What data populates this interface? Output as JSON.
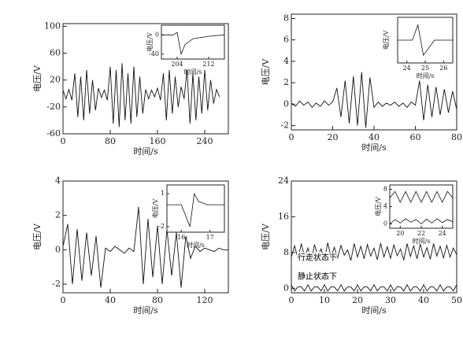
{
  "chart_data": [
    {
      "type": "line",
      "xlabel": "时间/s",
      "ylabel": "电压/V",
      "xlim": [
        0,
        280
      ],
      "xticks": [
        0,
        80,
        160,
        240
      ],
      "ylim": [
        -60,
        104
      ],
      "yticks": [
        -60,
        -20,
        20,
        60,
        100
      ],
      "x": [
        0,
        5,
        10,
        15,
        20,
        25,
        30,
        35,
        40,
        45,
        50,
        55,
        60,
        65,
        70,
        75,
        80,
        85,
        90,
        95,
        100,
        105,
        110,
        115,
        120,
        125,
        130,
        135,
        140,
        145,
        150,
        155,
        160,
        165,
        170,
        175,
        180,
        185,
        190,
        195,
        200,
        205,
        210,
        215,
        220,
        225,
        230,
        235,
        240,
        245,
        250,
        255,
        260,
        265
      ],
      "series": [
        {
          "color": "#111111",
          "values": [
            5,
            -8,
            6,
            -10,
            30,
            -35,
            25,
            -40,
            35,
            -30,
            20,
            -25,
            8,
            -6,
            5,
            -10,
            40,
            -45,
            35,
            -50,
            45,
            -40,
            30,
            -45,
            40,
            -35,
            25,
            -30,
            6,
            -8,
            5,
            -5,
            8,
            -10,
            30,
            -40,
            35,
            -30,
            25,
            -20,
            10,
            -8,
            35,
            -45,
            30,
            -40,
            25,
            -30,
            35,
            -25,
            20,
            -15,
            6,
            -5
          ]
        }
      ]
    },
    {
      "type": "line",
      "xlabel": "时间/s",
      "ylabel": "电压/V",
      "xlim": [
        0,
        80
      ],
      "xticks": [
        0,
        20,
        40,
        60,
        80
      ],
      "ylim": [
        -2.4,
        8.4
      ],
      "yticks": [
        -2,
        0,
        2,
        4,
        6,
        8
      ],
      "x": [
        0,
        2,
        4,
        6,
        8,
        10,
        12,
        14,
        16,
        18,
        20,
        22,
        24,
        26,
        28,
        30,
        32,
        34,
        36,
        38,
        40,
        42,
        44,
        46,
        48,
        50,
        52,
        54,
        56,
        58,
        60,
        62,
        64,
        66,
        68,
        70,
        72,
        74,
        76,
        78,
        80
      ],
      "series": [
        {
          "color": "#111111",
          "values": [
            0.1,
            -0.2,
            0.3,
            -0.1,
            0.2,
            -0.3,
            0.1,
            -0.2,
            0.3,
            -0.1,
            0.2,
            1.5,
            -1.2,
            2.2,
            -1.8,
            2.6,
            -2,
            3,
            -2.2,
            2.5,
            -0.3,
            0.2,
            -0.2,
            0.1,
            -0.1,
            0.2,
            -0.2,
            0.1,
            -0.3,
            0.2,
            -0.1,
            2.2,
            -1.5,
            1.8,
            -1.2,
            1.6,
            -1,
            1.4,
            -0.8,
            1.2,
            -0.5
          ]
        }
      ]
    },
    {
      "type": "line",
      "xlabel": "时间/s",
      "ylabel": "电压/V",
      "xlim": [
        0,
        140
      ],
      "xticks": [
        0,
        40,
        80,
        120
      ],
      "ylim": [
        -2.5,
        4
      ],
      "yticks": [
        -2,
        0,
        2,
        4
      ],
      "x": [
        0,
        4,
        8,
        12,
        16,
        20,
        24,
        28,
        32,
        36,
        40,
        44,
        48,
        52,
        56,
        60,
        64,
        68,
        72,
        76,
        80,
        84,
        88,
        92,
        96,
        100,
        104,
        108,
        112,
        116,
        120,
        124,
        128,
        132,
        136,
        140
      ],
      "series": [
        {
          "color": "#111111",
          "values": [
            0.2,
            1.5,
            -2,
            1.2,
            -1.8,
            1,
            -1.5,
            0.8,
            -2.2,
            0.1,
            -0.1,
            0.2,
            0,
            -0.2,
            0.1,
            -0.1,
            2.5,
            -2,
            1.8,
            -1.6,
            1.4,
            -2,
            1.2,
            -1.5,
            1,
            -2.2,
            0.8,
            -0.5,
            0.2,
            -0.1,
            0.1,
            0,
            -0.1,
            0.1,
            0,
            0
          ]
        }
      ]
    },
    {
      "type": "line",
      "xlabel": "时间/s",
      "ylabel": "电压/V",
      "xlim": [
        0,
        50
      ],
      "xticks": [
        0,
        10,
        20,
        30,
        40,
        50
      ],
      "ylim": [
        -1,
        24
      ],
      "yticks": [
        0,
        8,
        16,
        24
      ],
      "annotations": [
        "行走状态下",
        "静止状态下"
      ],
      "x": [
        0,
        1,
        2,
        3,
        4,
        5,
        6,
        7,
        8,
        9,
        10,
        11,
        12,
        13,
        14,
        15,
        16,
        17,
        18,
        19,
        20,
        21,
        22,
        23,
        24,
        25,
        26,
        27,
        28,
        29,
        30,
        31,
        32,
        33,
        34,
        35,
        36,
        37,
        38,
        39,
        40,
        41,
        42,
        43,
        44,
        45,
        46,
        47,
        48,
        49,
        50
      ],
      "series": [
        {
          "color": "#111111",
          "values": [
            7,
            9.5,
            6.5,
            10,
            7,
            9,
            6,
            9.8,
            7.2,
            8.8,
            6.4,
            10.2,
            7,
            9.2,
            6.8,
            9.6,
            7.4,
            8.6,
            6.2,
            10,
            7,
            9.4,
            6.6,
            9.8,
            7.2,
            9,
            6.4,
            10.1,
            7,
            9.3,
            6.7,
            9.7,
            7.3,
            8.8,
            6.3,
            10,
            7.1,
            9.5,
            6.6,
            9.9,
            7,
            9.1,
            6.5,
            10,
            7.2,
            9.4,
            6.8,
            9.6,
            7,
            9,
            7.5
          ]
        },
        {
          "color": "#111111",
          "values": [
            0.8,
            -0.6,
            0.3,
            0.3,
            -0.6,
            0.8,
            -0.6,
            0.3,
            0.3,
            -0.6,
            0.8,
            -0.6,
            0.3,
            0.3,
            -0.6,
            0.8,
            -0.6,
            0.3,
            0.3,
            -0.6,
            0.8,
            -0.6,
            0.3,
            0.3,
            -0.6,
            0.8,
            -0.6,
            0.3,
            0.3,
            -0.6,
            0.8,
            -0.6,
            0.3,
            0.3,
            -0.6,
            0.8,
            -0.6,
            0.3,
            0.3,
            -0.6,
            0.8,
            -0.6,
            0.3,
            0.3,
            -0.6,
            0.8,
            -0.6,
            0.3,
            0.3,
            -0.6,
            0.8
          ]
        }
      ]
    },
    {
      "type": "line",
      "xlabel": "时间/s",
      "ylabel": "电压/V",
      "xlim": [
        200,
        216
      ],
      "xticks": [
        204,
        212
      ],
      "ylim": [
        -50,
        20
      ],
      "yticks": [
        -40,
        0
      ],
      "x": [
        200,
        203,
        204,
        205,
        206,
        208,
        212,
        216
      ],
      "series": [
        {
          "color": "#111111",
          "values": [
            0,
            0,
            5,
            -40,
            -20,
            -8,
            -3,
            0
          ]
        }
      ]
    },
    {
      "type": "line",
      "xlabel": "时间/s",
      "ylabel": "电压/V",
      "xlim": [
        23.5,
        26.5
      ],
      "xticks": [
        24,
        25,
        26
      ],
      "ylim": [
        -3,
        3
      ],
      "x": [
        23.5,
        24.3,
        24.6,
        24.9,
        25.2,
        25.5,
        26,
        26.5
      ],
      "series": [
        {
          "color": "#111111",
          "values": [
            0,
            0,
            2,
            -2,
            -1,
            0,
            0,
            0
          ]
        }
      ]
    },
    {
      "type": "line",
      "xlabel": "时间/s",
      "ylabel": "电压/V",
      "xlim": [
        15.5,
        17.5
      ],
      "xticks": [
        16,
        17
      ],
      "ylim": [
        -2.5,
        1.8
      ],
      "yticks": [
        -2,
        1
      ],
      "x": [
        15.5,
        16,
        16.3,
        16.45,
        16.6,
        16.9,
        17.5
      ],
      "series": [
        {
          "color": "#111111",
          "values": [
            0,
            0,
            -2,
            1,
            0.3,
            0,
            0
          ]
        }
      ]
    },
    {
      "type": "line",
      "xlabel": "时间/s",
      "ylabel": "电压/V",
      "xlim": [
        19,
        25
      ],
      "xticks": [
        20,
        22,
        24
      ],
      "ylim": [
        -1,
        9
      ],
      "yticks": [
        0,
        4,
        8
      ],
      "x": [
        19,
        19.5,
        20,
        20.5,
        21,
        21.5,
        22,
        22.5,
        23,
        23.5,
        24,
        24.5,
        25
      ],
      "series": [
        {
          "color": "#111111",
          "values": [
            6,
            7.5,
            5,
            7.5,
            5,
            7.5,
            5,
            7.5,
            5,
            7.5,
            5,
            7.5,
            6
          ]
        },
        {
          "color": "#111111",
          "values": [
            0,
            1,
            0.2,
            1.2,
            0.4,
            1,
            0,
            1.1,
            0.2,
            1.2,
            0.3,
            1,
            0.5
          ]
        }
      ]
    }
  ]
}
